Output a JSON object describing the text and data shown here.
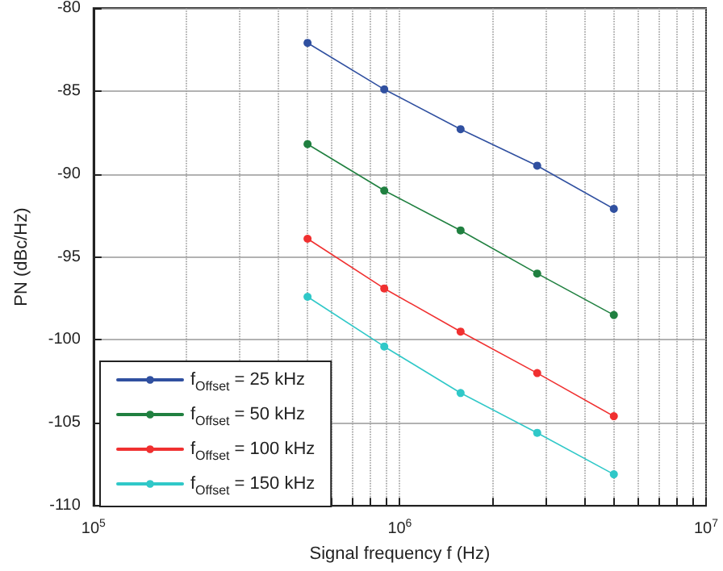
{
  "chart_data": {
    "type": "line",
    "xlabel": "Signal frequency f (Hz)",
    "ylabel": "PN (dBc/Hz)",
    "x": [
      500000,
      890000,
      1580000,
      2810000,
      5000000
    ],
    "series": [
      {
        "name": "f$_{Offset}$ = 25 kHz",
        "color": "#3050a0",
        "values": [
          -82.1,
          -84.9,
          -87.3,
          -89.5,
          -92.1
        ]
      },
      {
        "name": "f$_{Offset}$ = 50 kHz",
        "color": "#208040",
        "values": [
          -88.2,
          -91.0,
          -93.4,
          -96.0,
          -98.5
        ]
      },
      {
        "name": "f$_{Offset}$ = 100 kHz",
        "color": "#f03030",
        "values": [
          -93.9,
          -96.9,
          -99.5,
          -102.0,
          -104.6
        ]
      },
      {
        "name": "f$_{Offset}$ = 150 kHz",
        "color": "#30c8c8",
        "values": [
          -97.4,
          -100.4,
          -103.2,
          -105.6,
          -108.1
        ]
      }
    ],
    "log": "x",
    "xlim": [
      100000,
      10000000
    ],
    "xticks": [
      {
        "value": 100000,
        "label": "10$^{5}$"
      },
      {
        "value": 200000,
        "label": null
      },
      {
        "value": 300000,
        "label": null
      },
      {
        "value": 400000,
        "label": null
      },
      {
        "value": 500000,
        "label": null
      },
      {
        "value": 600000,
        "label": null
      },
      {
        "value": 700000,
        "label": null
      },
      {
        "value": 800000,
        "label": null
      },
      {
        "value": 900000,
        "label": null
      },
      {
        "value": 1000000,
        "label": "10$^{6}$"
      },
      {
        "value": 2000000,
        "label": null
      },
      {
        "value": 3000000,
        "label": null
      },
      {
        "value": 4000000,
        "label": null
      },
      {
        "value": 5000000,
        "label": null
      },
      {
        "value": 6000000,
        "label": null
      },
      {
        "value": 7000000,
        "label": null
      },
      {
        "value": 8000000,
        "label": null
      },
      {
        "value": 9000000,
        "label": null
      },
      {
        "value": 10000000,
        "label": "10$^{7}$"
      }
    ],
    "ylim": [
      -110,
      -80
    ],
    "yticks": [
      -110,
      -105,
      -100,
      -95,
      -90,
      -85,
      -80
    ],
    "grid": true,
    "legend": "bottom left",
    "marker": "circle",
    "line_style": "solid"
  }
}
